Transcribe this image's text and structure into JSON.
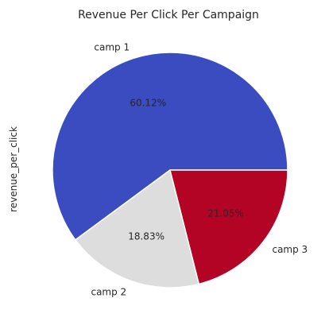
{
  "chart_data": {
    "type": "pie",
    "title": "Revenue Per Click Per Campaign",
    "ylabel": "revenue_per_click",
    "slices": [
      {
        "label": "camp 1",
        "value": 60.12,
        "pct_label": "60.12%",
        "color": "#3b4cc0"
      },
      {
        "label": "camp 2",
        "value": 18.83,
        "pct_label": "18.83%",
        "color": "#dddddd"
      },
      {
        "label": "camp 3",
        "value": 21.05,
        "pct_label": "21.05%",
        "color": "#b40426"
      }
    ],
    "legend": "none",
    "start_angle_deg": 0,
    "direction": "counterclockwise",
    "wedge_edge_color": "#ffffff"
  }
}
